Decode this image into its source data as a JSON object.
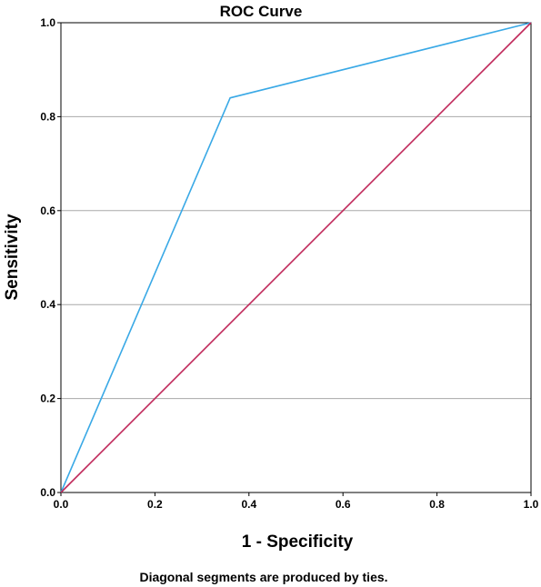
{
  "chart_data": {
    "type": "line",
    "title": "ROC Curve",
    "xlabel": "1 - Specificity",
    "ylabel": "Sensitivity",
    "xlim": [
      0.0,
      1.0
    ],
    "ylim": [
      0.0,
      1.0
    ],
    "x_ticks": [
      "0.0",
      "0.2",
      "0.4",
      "0.6",
      "0.8",
      "1.0"
    ],
    "y_ticks": [
      "0.0",
      "0.2",
      "0.4",
      "0.6",
      "0.8",
      "1.0"
    ],
    "grid": "horizontal",
    "series": [
      {
        "x": [
          0.0,
          0.36,
          1.0
        ],
        "y": [
          0.0,
          0.84,
          1.0
        ],
        "color": "#3aa9e6"
      },
      {
        "x": [
          0.0,
          1.0
        ],
        "y": [
          0.0,
          1.0
        ],
        "color": "#c0285a"
      }
    ],
    "footnote": "Diagonal segments are produced by ties."
  }
}
